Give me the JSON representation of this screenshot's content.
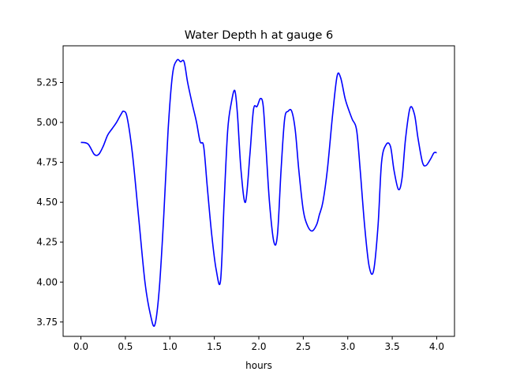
{
  "chart_data": {
    "type": "line",
    "title": "Water Depth h at gauge 6",
    "xlabel": "hours",
    "ylabel": "",
    "xlim": [
      -0.2,
      4.2
    ],
    "ylim": [
      3.66,
      5.48
    ],
    "xticks": [
      "0.0",
      "0.5",
      "1.0",
      "1.5",
      "2.0",
      "2.5",
      "3.0",
      "3.5",
      "4.0"
    ],
    "yticks": [
      "3.75",
      "4.00",
      "4.25",
      "4.50",
      "4.75",
      "5.00",
      "5.25"
    ],
    "grid": false,
    "series": [
      {
        "color": "#0000ff",
        "x": [
          0.0,
          0.08,
          0.15,
          0.2,
          0.25,
          0.3,
          0.35,
          0.4,
          0.45,
          0.48,
          0.52,
          0.58,
          0.65,
          0.72,
          0.78,
          0.83,
          0.88,
          0.93,
          0.98,
          1.03,
          1.08,
          1.12,
          1.16,
          1.2,
          1.25,
          1.3,
          1.34,
          1.38,
          1.42,
          1.47,
          1.52,
          1.57,
          1.61,
          1.65,
          1.69,
          1.73,
          1.76,
          1.8,
          1.85,
          1.9,
          1.94,
          1.98,
          2.02,
          2.05,
          2.08,
          2.12,
          2.17,
          2.21,
          2.25,
          2.29,
          2.33,
          2.37,
          2.41,
          2.45,
          2.5,
          2.55,
          2.6,
          2.65,
          2.68,
          2.72,
          2.77,
          2.83,
          2.88,
          2.92,
          2.97,
          3.01,
          3.05,
          3.1,
          3.14,
          3.19,
          3.24,
          3.29,
          3.34,
          3.38,
          3.43,
          3.48,
          3.52,
          3.57,
          3.61,
          3.65,
          3.7,
          3.75,
          3.79,
          3.84,
          3.88,
          3.93,
          3.97,
          4.0
        ],
        "y": [
          4.875,
          4.865,
          4.8,
          4.8,
          4.85,
          4.92,
          4.96,
          5.0,
          5.05,
          5.07,
          5.03,
          4.8,
          4.4,
          4.0,
          3.8,
          3.73,
          3.95,
          4.4,
          4.95,
          5.3,
          5.39,
          5.38,
          5.38,
          5.25,
          5.12,
          5.0,
          4.88,
          4.85,
          4.6,
          4.3,
          4.08,
          4.01,
          4.5,
          4.95,
          5.12,
          5.2,
          5.05,
          4.7,
          4.5,
          4.8,
          5.08,
          5.1,
          5.15,
          5.1,
          4.85,
          4.5,
          4.25,
          4.3,
          4.7,
          5.02,
          5.07,
          5.07,
          4.95,
          4.7,
          4.45,
          4.35,
          4.32,
          4.36,
          4.42,
          4.5,
          4.7,
          5.05,
          5.29,
          5.28,
          5.15,
          5.08,
          5.02,
          4.95,
          4.7,
          4.35,
          4.1,
          4.07,
          4.35,
          4.75,
          4.86,
          4.85,
          4.7,
          4.58,
          4.65,
          4.9,
          5.09,
          5.05,
          4.9,
          4.75,
          4.73,
          4.77,
          4.81,
          4.81
        ]
      }
    ]
  }
}
